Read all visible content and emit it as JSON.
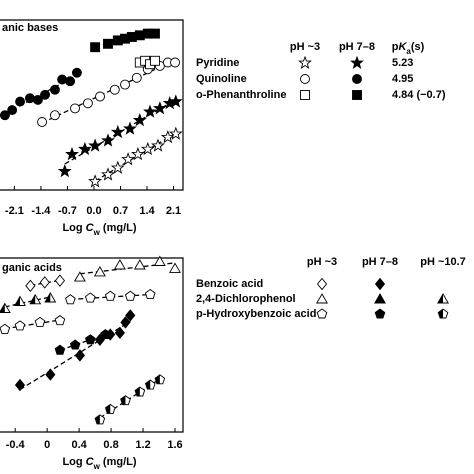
{
  "chart_data": [
    {
      "type": "scatter",
      "title": "anic bases",
      "xlabel": [
        "Log ",
        "C",
        "w",
        " (mg/L)"
      ],
      "xlim": [
        -2.48,
        2.35
      ],
      "ylim": [
        0,
        10
      ],
      "xticks": [
        -2.1,
        -1.4,
        -0.7,
        {
          "value": 0,
          "label": "0.0"
        },
        0.7,
        1.4,
        2.1
      ],
      "series": [
        {
          "marker": "circle",
          "fill": "filled",
          "x": [
            -2.35,
            -2.16,
            -1.95,
            -1.69,
            -1.48,
            -1.29,
            -1.03,
            -0.84,
            -0.63,
            -0.45
          ],
          "y": [
            4.4,
            4.7,
            5.2,
            5.4,
            5.3,
            5.6,
            5.9,
            6.5,
            6.4,
            6.9
          ]
        },
        {
          "marker": "circle",
          "fill": "open",
          "x": [
            -1.37,
            -1.03,
            -0.5,
            -0.16,
            0.16,
            0.55,
            0.82,
            1.13,
            1.42,
            1.74,
            1.95,
            2.14
          ],
          "y": [
            4.0,
            4.4,
            4.8,
            5.1,
            5.5,
            5.9,
            6.2,
            6.6,
            7.1,
            7.3,
            7.5,
            7.5
          ]
        },
        {
          "marker": "square",
          "fill": "filled",
          "x": [
            0.03,
            0.37,
            0.63,
            0.82,
            1.0,
            1.21,
            1.42,
            1.61
          ],
          "y": [
            8.4,
            8.6,
            8.8,
            8.9,
            9.0,
            9.1,
            9.2,
            9.2
          ]
        },
        {
          "marker": "square",
          "fill": "open",
          "x": [
            1.21,
            1.35,
            1.48,
            1.61
          ],
          "y": [
            7.5,
            7.6,
            7.4,
            7.6
          ]
        },
        {
          "marker": "star",
          "fill": "filled",
          "x": [
            -0.77,
            -0.58,
            -0.24,
            0.03,
            0.37,
            0.63,
            0.95,
            1.21,
            1.48,
            1.74,
            2.0,
            2.16
          ],
          "y": [
            1.1,
            2.1,
            2.4,
            2.6,
            2.9,
            3.4,
            3.6,
            4.1,
            4.6,
            4.8,
            5.1,
            5.2
          ]
        },
        {
          "marker": "star",
          "fill": "open",
          "x": [
            0.03,
            0.37,
            0.63,
            0.9,
            1.16,
            1.42,
            1.69,
            1.95,
            2.16
          ],
          "y": [
            0.5,
            0.9,
            1.3,
            1.8,
            2.1,
            2.4,
            2.6,
            3.1,
            3.3
          ]
        }
      ],
      "legend": {
        "headers": [
          "pH ~3",
          "pH 7–8",
          [
            "p",
            "K",
            "a",
            "(s)"
          ]
        ],
        "rows": [
          {
            "label": "Pyridine",
            "marker": "star",
            "fills": [
              "open",
              "filled"
            ],
            "value": "5.23"
          },
          {
            "label": "Quinoline",
            "marker": "circle",
            "fills": [
              "open",
              "filled"
            ],
            "value": "4.95"
          },
          {
            "label": "o-Phenanthroline",
            "marker": "square",
            "fills": [
              "open",
              "filled"
            ],
            "value": "4.84 (−0.7)"
          }
        ]
      }
    },
    {
      "type": "scatter",
      "title": "ganic acids",
      "xlabel": [
        "Log ",
        "C",
        "w",
        " (mg/L)"
      ],
      "xlim": [
        -0.59,
        1.7
      ],
      "ylim": [
        0,
        10
      ],
      "xticks": [
        -0.4,
        0,
        0.4,
        0.8,
        1.2,
        1.6
      ],
      "series": [
        {
          "marker": "triangle",
          "fill": "open",
          "x": [
            0.41,
            0.66,
            0.91,
            1.16,
            1.41,
            1.6
          ],
          "y": [
            8.9,
            9.2,
            9.6,
            9.6,
            9.8,
            9.4
          ]
        },
        {
          "marker": "triangle",
          "fill": "half",
          "x": [
            -0.53,
            -0.34,
            -0.15,
            0.04
          ],
          "y": [
            7.1,
            7.5,
            7.6,
            7.7
          ]
        },
        {
          "marker": "diamond",
          "fill": "open",
          "x": [
            -0.21,
            -0.03,
            0.16
          ],
          "y": [
            8.4,
            8.6,
            8.7
          ]
        },
        {
          "marker": "pentagon",
          "fill": "open",
          "x": [
            0.29,
            0.54,
            0.79,
            1.04,
            1.29
          ],
          "y": [
            7.6,
            7.7,
            7.8,
            7.8,
            7.9
          ]
        },
        {
          "marker": "pentagon",
          "fill": "open",
          "x": [
            -0.53,
            -0.34,
            -0.09,
            0.16
          ],
          "y": [
            5.9,
            6.1,
            6.3,
            6.4
          ]
        },
        {
          "marker": "diamond",
          "fill": "filled",
          "x": [
            -0.34,
            0.04,
            0.41,
            0.66,
            0.79,
            0.91,
            0.98,
            1.04
          ],
          "y": [
            2.7,
            3.3,
            4.4,
            5.3,
            5.6,
            5.7,
            6.3,
            6.7
          ]
        },
        {
          "marker": "pentagon",
          "fill": "filled",
          "x": [
            0.16,
            0.35,
            0.54,
            0.73
          ],
          "y": [
            4.7,
            5.0,
            5.3,
            5.6
          ]
        },
        {
          "marker": "pentagon",
          "fill": "half",
          "x": [
            0.66,
            0.79,
            0.98,
            1.16,
            1.29,
            1.41
          ],
          "y": [
            0.7,
            1.3,
            1.8,
            2.3,
            2.7,
            3.0
          ]
        }
      ],
      "legend": {
        "headers": [
          "pH ~3",
          "pH 7–8",
          "pH ~10.7"
        ],
        "rows": [
          {
            "label": "Benzoic acid",
            "marker": "diamond",
            "fills": [
              "open",
              "filled"
            ]
          },
          {
            "label": "2,4-Dichlorophenol",
            "marker": "triangle",
            "fills": [
              "open",
              "filled",
              "half"
            ]
          },
          {
            "label": "p-Hydroxybenzoic acid",
            "marker": "pentagon",
            "fills": [
              "open",
              "filled",
              "half"
            ]
          }
        ]
      }
    }
  ]
}
